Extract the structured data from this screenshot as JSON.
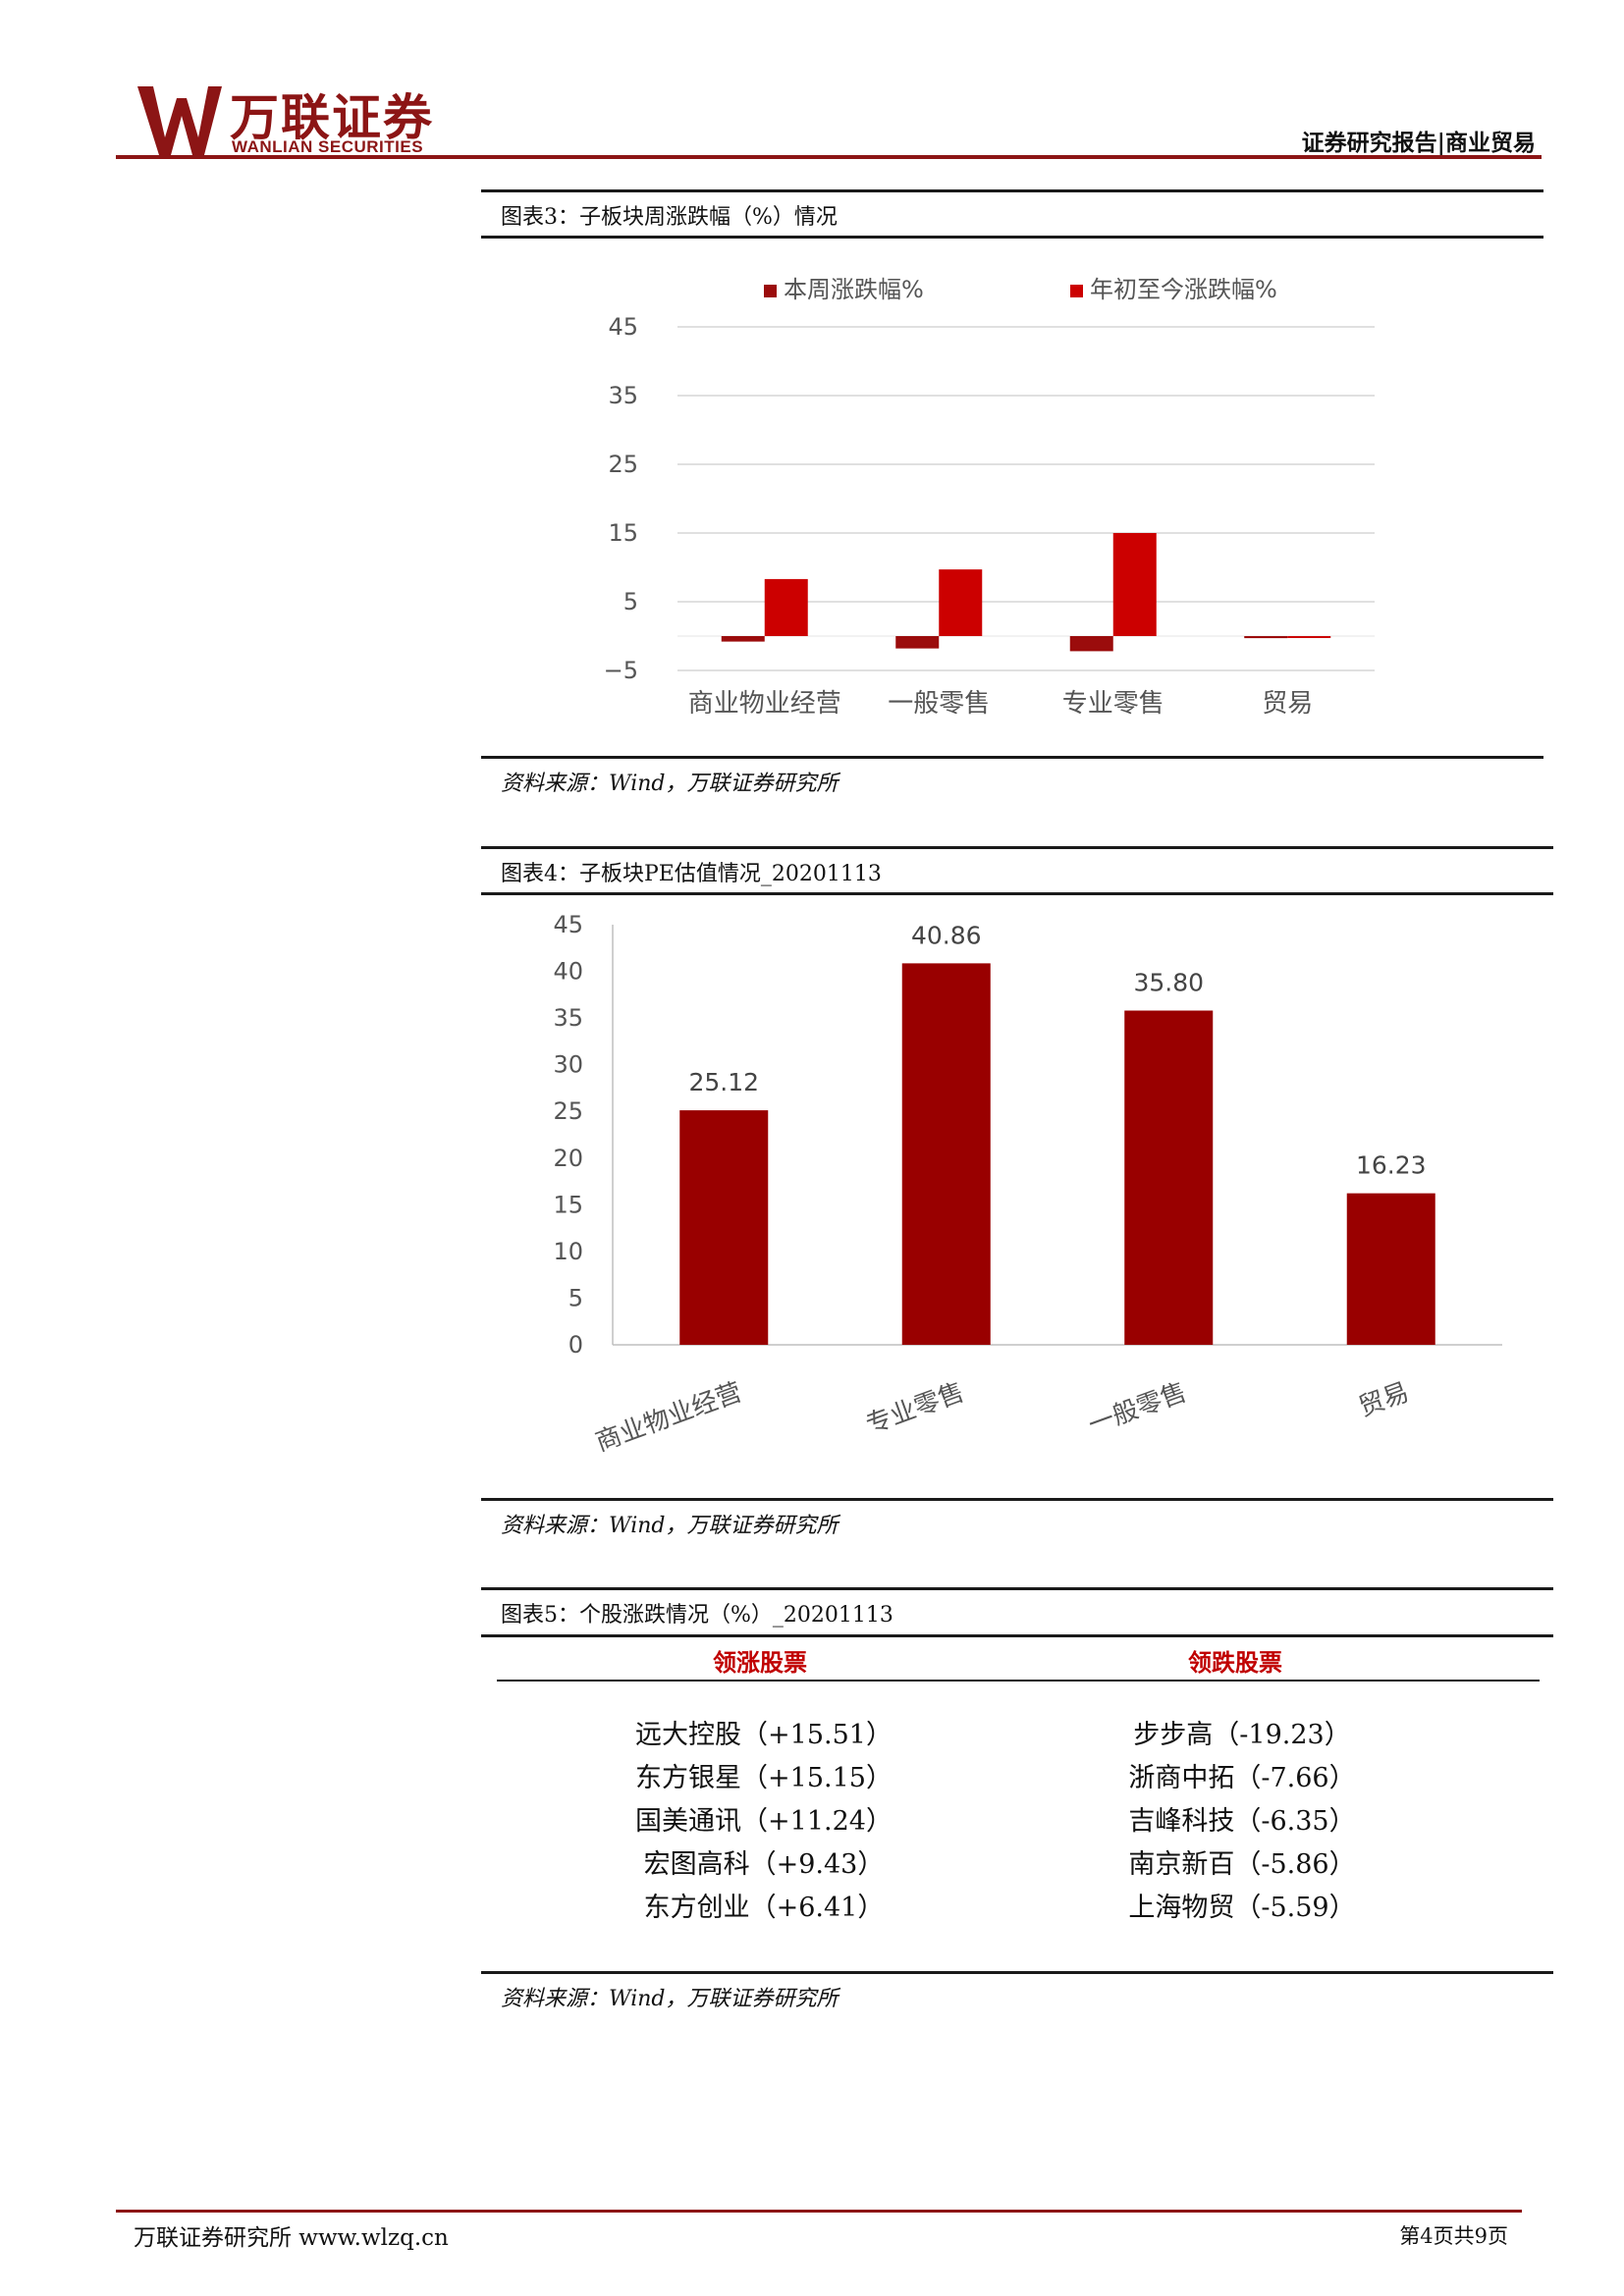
{
  "header": {
    "logo_cn": "万联证券",
    "logo_en": "WANLIAN SECURITIES",
    "report_type": "证券研究报告|商业贸易"
  },
  "figure3": {
    "caption": "图表3：子板块周涨跌幅（%）情况",
    "source": "资料来源：Wind，万联证券研究所"
  },
  "figure4": {
    "caption": "图表4：子板块PE估值情况_20201113",
    "source": "资料来源：Wind，万联证券研究所"
  },
  "figure5": {
    "caption": "图表5：个股涨跌情况（%）_20201113",
    "source": "资料来源：Wind，万联证券研究所",
    "col_up": "领涨股票",
    "col_down": "领跌股票",
    "rows": [
      {
        "up": "远大控股（+15.51）",
        "down": "步步高（-19.23）"
      },
      {
        "up": "东方银星（+15.15）",
        "down": "浙商中拓（-7.66）"
      },
      {
        "up": "国美通讯（+11.24）",
        "down": "吉峰科技（-6.35）"
      },
      {
        "up": "宏图高科（+9.43）",
        "down": "南京新百（-5.86）"
      },
      {
        "up": "东方创业（+6.41）",
        "down": "上海物贸（-5.59）"
      }
    ]
  },
  "footer": {
    "left": "万联证券研究所 www.wlzq.cn",
    "right": "第4页共9页"
  },
  "colors": {
    "brand": "#8c1515",
    "series_week": "#9b0c0c",
    "series_ytd": "#cc0000",
    "pe_bar": "#990000"
  },
  "chart_data": [
    {
      "type": "bar",
      "title": "",
      "categories": [
        "商业物业经营",
        "一般零售",
        "专业零售",
        "贸易"
      ],
      "series": [
        {
          "name": "本周涨跌幅%",
          "values": [
            -0.8,
            -1.8,
            -2.2,
            -0.3
          ]
        },
        {
          "name": "年初至今涨跌幅%",
          "values": [
            8.3,
            9.7,
            15.0,
            -0.2
          ]
        }
      ],
      "ylim": [
        -5,
        45
      ],
      "yticks": [
        -5,
        5,
        15,
        25,
        35,
        45
      ],
      "grid": true,
      "legend": "top"
    },
    {
      "type": "bar",
      "title": "",
      "categories": [
        "商业物业经营",
        "专业零售",
        "一般零售",
        "贸易"
      ],
      "values": [
        25.12,
        40.86,
        35.8,
        16.23
      ],
      "data_labels": [
        "25.12",
        "40.86",
        "35.80",
        "16.23"
      ],
      "ylim": [
        0,
        45
      ],
      "yticks": [
        0,
        5,
        10,
        15,
        20,
        25,
        30,
        35,
        40,
        45
      ],
      "grid": false
    }
  ]
}
